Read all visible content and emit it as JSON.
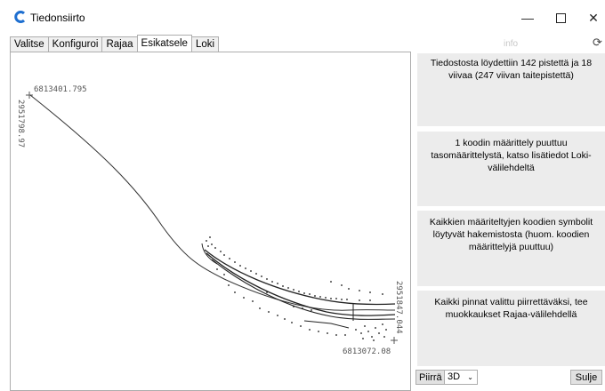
{
  "window": {
    "title": "Tiedonsiirto",
    "icon": "app-c-icon",
    "controls": [
      "minimize-icon",
      "maximize-icon",
      "close-icon"
    ]
  },
  "tabs": [
    {
      "label": "Valitse"
    },
    {
      "label": "Konfiguroi"
    },
    {
      "label": "Rajaa"
    },
    {
      "label": "Esikatsele",
      "active": true
    },
    {
      "label": "Loki"
    }
  ],
  "preview": {
    "top_left_x": "6813401.795",
    "top_left_y": "2951798.97",
    "bottom_right_x": "6813072.08",
    "bottom_right_y": "2951847.044"
  },
  "info": {
    "header": "info",
    "refresh_icon": "refresh-icon",
    "messages": [
      "Tiedostosta löydettiin 142 pistettä ja 18 viivaa (247 viivan taitepistettä)",
      "1 koodin määrittely puuttuu tasomäärittelystä, katso lisätiedot Loki-välilehdeltä",
      "Kaikkien määriteltyjen koodien symbolit löytyvät hakemistosta (huom. koodien määrittelyjä puuttuu)",
      "Kaikki pinnat valittu piirrettäväksi, tee muokkaukset Rajaa-välilehdellä"
    ]
  },
  "bottom": {
    "draw_button": "Piirrä",
    "view_select": "3D",
    "close_button": "Sulje"
  }
}
